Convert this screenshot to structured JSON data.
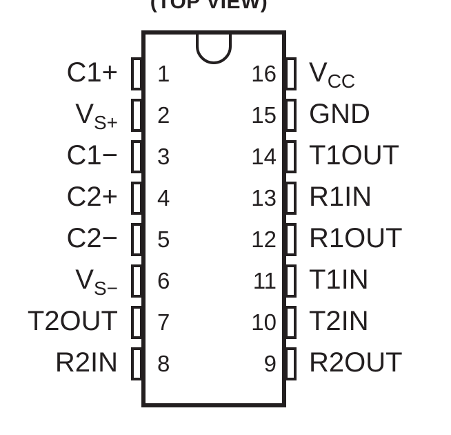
{
  "title": "(TOP VIEW)",
  "left_pins": [
    {
      "number": "1",
      "name": "C1+",
      "sub": ""
    },
    {
      "number": "2",
      "name": "V",
      "sub": "S+"
    },
    {
      "number": "3",
      "name": "C1−",
      "sub": ""
    },
    {
      "number": "4",
      "name": "C2+",
      "sub": ""
    },
    {
      "number": "5",
      "name": "C2−",
      "sub": ""
    },
    {
      "number": "6",
      "name": "V",
      "sub": "S−"
    },
    {
      "number": "7",
      "name": "T2OUT",
      "sub": ""
    },
    {
      "number": "8",
      "name": "R2IN",
      "sub": ""
    }
  ],
  "right_pins": [
    {
      "number": "16",
      "name": "V",
      "sub": "CC"
    },
    {
      "number": "15",
      "name": "GND",
      "sub": ""
    },
    {
      "number": "14",
      "name": "T1OUT",
      "sub": ""
    },
    {
      "number": "13",
      "name": "R1IN",
      "sub": ""
    },
    {
      "number": "12",
      "name": "R1OUT",
      "sub": ""
    },
    {
      "number": "11",
      "name": "T1IN",
      "sub": ""
    },
    {
      "number": "10",
      "name": "T2IN",
      "sub": ""
    },
    {
      "number": "9",
      "name": "R2OUT",
      "sub": ""
    }
  ],
  "colors": {
    "ink": "#231f20",
    "background": "#ffffff"
  }
}
